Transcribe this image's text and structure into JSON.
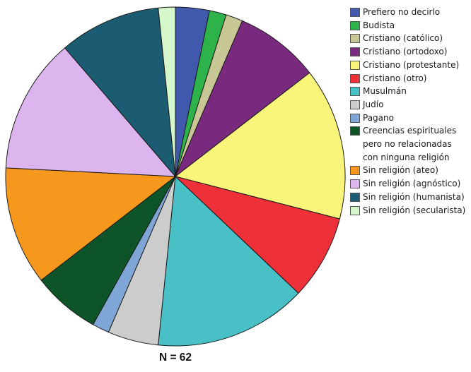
{
  "chart_data": {
    "type": "pie",
    "n_label": "N = 62",
    "legend_placement": "top-right",
    "slices": [
      {
        "label": "Prefiero no decirlo",
        "value": 2,
        "color": "#4059ad"
      },
      {
        "label": "Budista",
        "value": 1,
        "color": "#2eb34a"
      },
      {
        "label": "Cristiano (católico)",
        "value": 1,
        "color": "#c8c795"
      },
      {
        "label": "Cristiano (ortodoxo)",
        "value": 5,
        "color": "#7a2a7e"
      },
      {
        "label": "Cristiano (protestante)",
        "value": 9,
        "color": "#f8f57a"
      },
      {
        "label": "Cristiano (otro)",
        "value": 5,
        "color": "#ee3039"
      },
      {
        "label": "Musulmán",
        "value": 9,
        "color": "#49c0c5"
      },
      {
        "label": "Judío",
        "value": 3,
        "color": "#cccccc"
      },
      {
        "label": "Pagano",
        "value": 1,
        "color": "#7fa6d6"
      },
      {
        "label": "Creencias espirituales pero no relacionadas con ninguna religión",
        "value": 4,
        "color": "#0d5428"
      },
      {
        "label": "Sin religión (ateo)",
        "value": 7,
        "color": "#f6971e"
      },
      {
        "label": "Sin religión (agnóstico)",
        "value": 8,
        "color": "#dcb5ee"
      },
      {
        "label": "Sin religión (humanista)",
        "value": 6,
        "color": "#1c5c73"
      },
      {
        "label": "Sin religión (secularista)",
        "value": 1,
        "color": "#d6f7cc"
      }
    ]
  }
}
